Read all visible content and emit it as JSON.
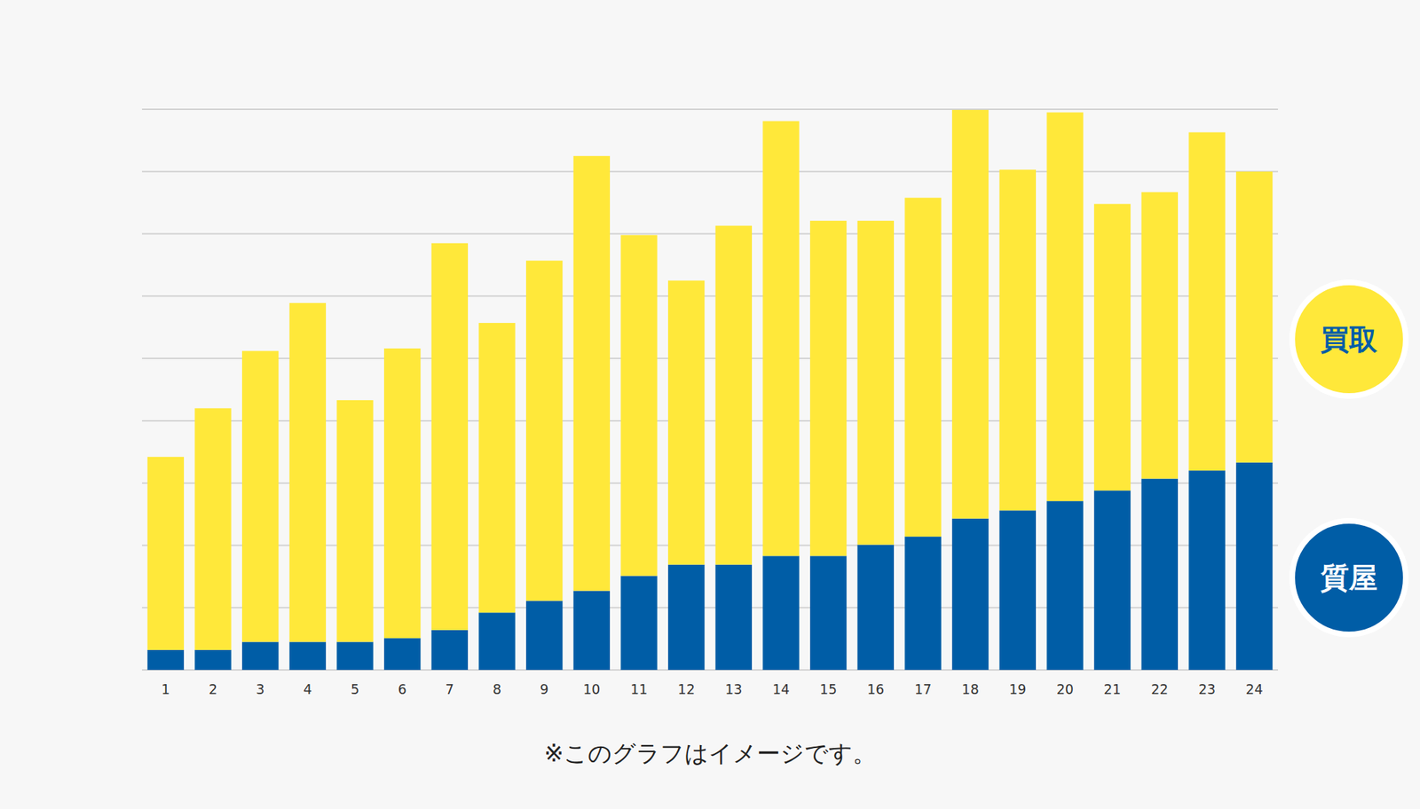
{
  "chart_data": {
    "type": "bar",
    "stacked": true,
    "categories": [
      "1",
      "2",
      "3",
      "4",
      "5",
      "6",
      "7",
      "8",
      "9",
      "10",
      "11",
      "12",
      "13",
      "14",
      "15",
      "16",
      "17",
      "18",
      "19",
      "20",
      "21",
      "22",
      "23",
      "24"
    ],
    "series": [
      {
        "name": "質屋",
        "color": "#005da6",
        "values": [
          0.32,
          0.32,
          0.45,
          0.45,
          0.45,
          0.51,
          0.64,
          0.92,
          1.11,
          1.27,
          1.51,
          1.69,
          1.69,
          1.83,
          1.83,
          2.01,
          2.14,
          2.43,
          2.56,
          2.71,
          2.88,
          3.07,
          3.2,
          3.33
        ]
      },
      {
        "name": "買取",
        "color": "#ffe83a",
        "values": [
          3.1,
          3.88,
          4.67,
          5.44,
          3.88,
          4.65,
          6.21,
          4.65,
          5.46,
          6.98,
          5.47,
          4.56,
          5.44,
          6.98,
          5.38,
          5.2,
          5.44,
          6.56,
          5.47,
          6.24,
          4.6,
          4.6,
          5.43,
          4.67
        ]
      }
    ],
    "ylim": [
      0,
      9
    ],
    "yticks": [
      0,
      1,
      2,
      3,
      4,
      5,
      6,
      7,
      8,
      9
    ],
    "grid": true,
    "tick_labels": "x",
    "legend": "right",
    "annotations": [
      "※このグラフはイメージです。"
    ]
  }
}
